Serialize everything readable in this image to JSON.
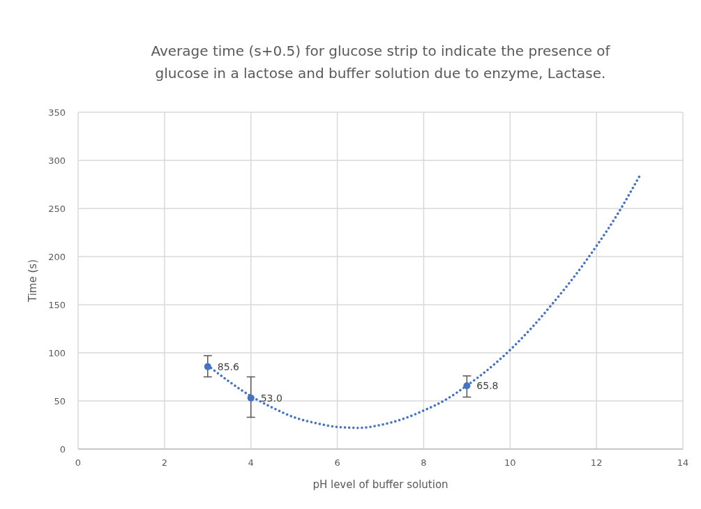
{
  "chart_data": {
    "type": "scatter",
    "title": "Average time (s+0.5) for glucose strip to indicate the presence of glucose in a lactose and buffer solution due to enzyme, Lactase.",
    "xlabel": "pH level of buffer solution",
    "ylabel": "Time (s)",
    "xlim": [
      0,
      14
    ],
    "xticks": [
      0,
      2,
      4,
      6,
      8,
      10,
      12,
      14
    ],
    "ylim": [
      0,
      350
    ],
    "yticks": [
      0,
      50,
      100,
      150,
      200,
      250,
      300,
      350
    ],
    "grid": true,
    "series": [
      {
        "color": "#4472c4",
        "marker": "circle",
        "x": [
          3,
          4,
          9
        ],
        "values": [
          85.6,
          53.0,
          65.8
        ],
        "value_labels": [
          "85.6",
          "53.0",
          "65.8"
        ],
        "errors": [
          [
            75,
            97
          ],
          [
            33,
            75
          ],
          [
            54,
            76
          ]
        ]
      },
      {
        "type": "line",
        "color": "#4472c4",
        "line_style": "dotted",
        "x": [
          3,
          3.5,
          4,
          4.5,
          5,
          5.5,
          6,
          6.5,
          7,
          7.5,
          8,
          8.5,
          9,
          9.5,
          10,
          10.5,
          11,
          11.5,
          12,
          12.5,
          13
        ],
        "values": [
          87,
          70,
          55,
          43,
          33,
          27,
          23,
          22,
          25,
          31,
          40,
          51,
          66,
          83,
          103,
          126,
          152,
          180,
          211,
          245,
          284
        ]
      }
    ]
  }
}
